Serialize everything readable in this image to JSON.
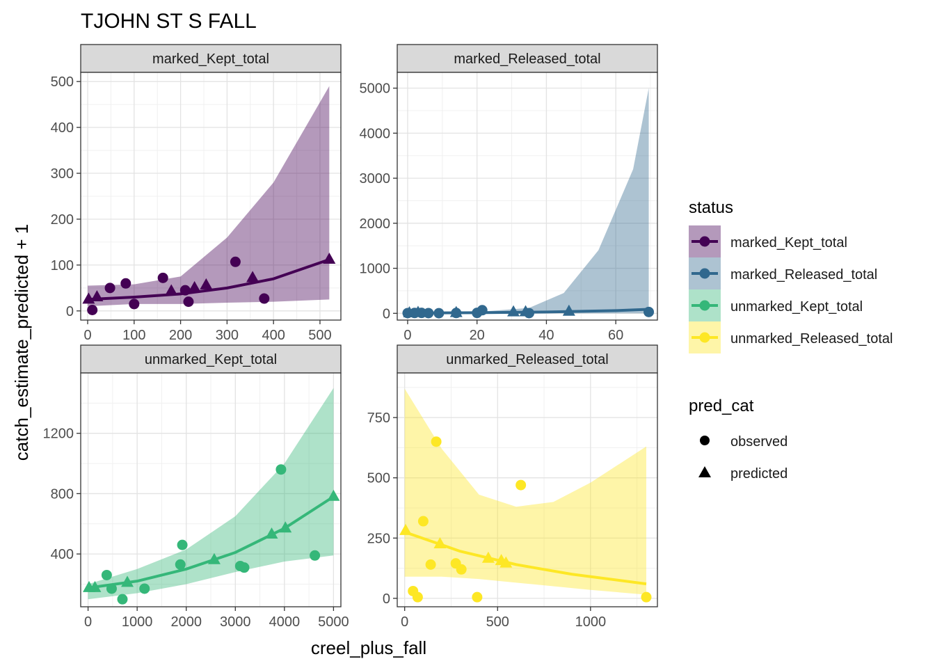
{
  "title": "TJOHN ST S FALL",
  "xlabel": "creel_plus_fall",
  "ylabel": "catch_estimate_predicted + 1",
  "legend": {
    "status_title": "status",
    "status_items": [
      {
        "label": "marked_Kept_total",
        "color": "#440154"
      },
      {
        "label": "marked_Released_total",
        "color": "#31688e"
      },
      {
        "label": "unmarked_Kept_total",
        "color": "#35b779"
      },
      {
        "label": "unmarked_Released_total",
        "color": "#fde725"
      }
    ],
    "pred_title": "pred_cat",
    "pred_items": [
      {
        "label": "observed",
        "shape": "circle"
      },
      {
        "label": "predicted",
        "shape": "triangle"
      }
    ]
  },
  "chart_data": [
    {
      "type": "scatter",
      "strip": "marked_Kept_total",
      "color": "#440154",
      "xlim": [
        -15,
        545
      ],
      "ylim": [
        -20,
        520
      ],
      "xticks": [
        0,
        100,
        200,
        300,
        400,
        500
      ],
      "yticks": [
        0,
        100,
        200,
        300,
        400,
        500
      ],
      "observed": [
        [
          10,
          2
        ],
        [
          48,
          50
        ],
        [
          82,
          60
        ],
        [
          100,
          15
        ],
        [
          162,
          72
        ],
        [
          210,
          45
        ],
        [
          217,
          20
        ],
        [
          318,
          107
        ],
        [
          380,
          27
        ]
      ],
      "predicted": [
        [
          2,
          25
        ],
        [
          20,
          30
        ],
        [
          180,
          43
        ],
        [
          230,
          50
        ],
        [
          255,
          56
        ],
        [
          355,
          72
        ],
        [
          520,
          112
        ]
      ],
      "fit": [
        [
          0,
          25
        ],
        [
          100,
          30
        ],
        [
          200,
          37
        ],
        [
          300,
          50
        ],
        [
          400,
          70
        ],
        [
          520,
          112
        ]
      ],
      "ribbon": [
        [
          0,
          10,
          55
        ],
        [
          100,
          15,
          58
        ],
        [
          200,
          15,
          75
        ],
        [
          300,
          18,
          160
        ],
        [
          400,
          20,
          280
        ],
        [
          520,
          25,
          490
        ]
      ],
      "grid": true
    },
    {
      "type": "scatter",
      "strip": "marked_Released_total",
      "color": "#31688e",
      "xlim": [
        -3,
        72
      ],
      "ylim": [
        -150,
        5350
      ],
      "xticks": [
        0,
        20,
        40,
        60
      ],
      "yticks": [
        0,
        1000,
        2000,
        3000,
        4000,
        5000
      ],
      "observed": [
        [
          0,
          5
        ],
        [
          2,
          8
        ],
        [
          4,
          10
        ],
        [
          6,
          5
        ],
        [
          9,
          3
        ],
        [
          14,
          8
        ],
        [
          20,
          10
        ],
        [
          21.5,
          70
        ],
        [
          35,
          5
        ],
        [
          69.5,
          30
        ]
      ],
      "predicted": [
        [
          0.5,
          5
        ],
        [
          3,
          15
        ],
        [
          14,
          10
        ],
        [
          30.5,
          25
        ],
        [
          34,
          28
        ],
        [
          46.5,
          40
        ]
      ],
      "fit": [
        [
          0,
          5
        ],
        [
          20,
          15
        ],
        [
          40,
          30
        ],
        [
          60,
          60
        ],
        [
          69.5,
          90
        ]
      ],
      "ribbon": [
        [
          0,
          0,
          10
        ],
        [
          20,
          0,
          30
        ],
        [
          35,
          0,
          120
        ],
        [
          45,
          0,
          450
        ],
        [
          55,
          0,
          1400
        ],
        [
          65,
          0,
          3200
        ],
        [
          69.5,
          0,
          5000
        ]
      ],
      "grid": true
    },
    {
      "type": "scatter",
      "strip": "unmarked_Kept_total",
      "color": "#35b779",
      "xlim": [
        -150,
        5150
      ],
      "ylim": [
        50,
        1600
      ],
      "xticks": [
        0,
        1000,
        2000,
        3000,
        4000,
        5000
      ],
      "yticks": [
        400,
        800,
        1200
      ],
      "observed": [
        [
          380,
          260
        ],
        [
          480,
          170
        ],
        [
          700,
          100
        ],
        [
          1150,
          170
        ],
        [
          1880,
          330
        ],
        [
          1920,
          460
        ],
        [
          3100,
          320
        ],
        [
          3180,
          310
        ],
        [
          3930,
          960
        ],
        [
          4620,
          390
        ]
      ],
      "predicted": [
        [
          20,
          175
        ],
        [
          140,
          175
        ],
        [
          800,
          210
        ],
        [
          2570,
          360
        ],
        [
          3740,
          530
        ],
        [
          4020,
          570
        ],
        [
          5000,
          780
        ]
      ],
      "fit": [
        [
          0,
          175
        ],
        [
          1000,
          220
        ],
        [
          2000,
          300
        ],
        [
          3000,
          410
        ],
        [
          4000,
          570
        ],
        [
          5000,
          780
        ]
      ],
      "ribbon": [
        [
          0,
          100,
          200
        ],
        [
          1000,
          140,
          300
        ],
        [
          2000,
          200,
          430
        ],
        [
          3000,
          280,
          650
        ],
        [
          4000,
          350,
          1000
        ],
        [
          5000,
          390,
          1500
        ]
      ],
      "grid": true
    },
    {
      "type": "scatter",
      "strip": "unmarked_Released_total",
      "color": "#fde725",
      "xlim": [
        -40,
        1360
      ],
      "ylim": [
        -35,
        935
      ],
      "xticks": [
        0,
        500,
        1000
      ],
      "yticks": [
        0,
        250,
        500,
        750
      ],
      "observed": [
        [
          45,
          30
        ],
        [
          70,
          5
        ],
        [
          100,
          320
        ],
        [
          140,
          140
        ],
        [
          170,
          650
        ],
        [
          275,
          145
        ],
        [
          305,
          120
        ],
        [
          390,
          5
        ],
        [
          625,
          470
        ],
        [
          1300,
          5
        ]
      ],
      "predicted": [
        [
          5,
          280
        ],
        [
          190,
          225
        ],
        [
          450,
          165
        ],
        [
          520,
          155
        ],
        [
          545,
          145
        ]
      ],
      "fit": [
        [
          0,
          275
        ],
        [
          300,
          195
        ],
        [
          600,
          140
        ],
        [
          900,
          100
        ],
        [
          1300,
          60
        ]
      ],
      "ribbon": [
        [
          0,
          90,
          870
        ],
        [
          200,
          90,
          620
        ],
        [
          400,
          80,
          430
        ],
        [
          600,
          65,
          380
        ],
        [
          800,
          50,
          400
        ],
        [
          1000,
          35,
          480
        ],
        [
          1300,
          15,
          630
        ]
      ],
      "grid": true
    }
  ]
}
